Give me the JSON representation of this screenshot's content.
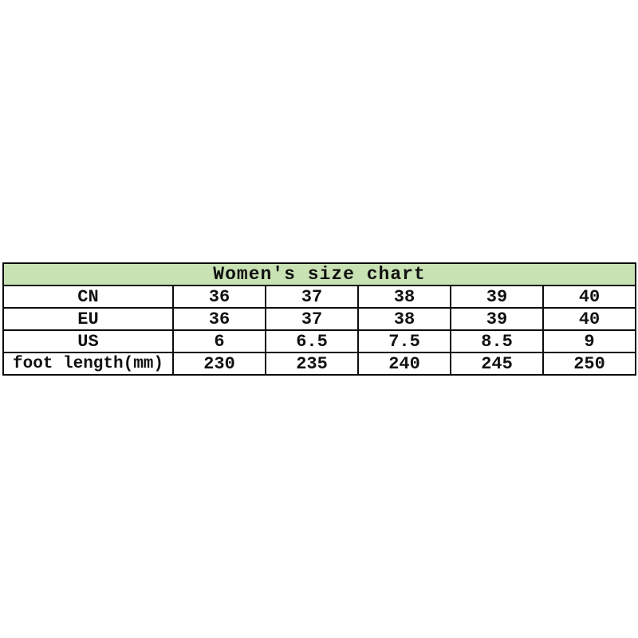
{
  "chart_data": {
    "type": "table",
    "title": "Women's size chart",
    "title_bg": "#c9e2b4",
    "border_color": "#0c0c0c",
    "text_color": "#111111",
    "background": "#ffffff",
    "columns_per_row": 5,
    "rows": [
      {
        "label": "CN",
        "values": [
          "36",
          "37",
          "38",
          "39",
          "40"
        ]
      },
      {
        "label": "EU",
        "values": [
          "36",
          "37",
          "38",
          "39",
          "40"
        ]
      },
      {
        "label": "US",
        "values": [
          "6",
          "6.5",
          "7.5",
          "8.5",
          "9"
        ]
      },
      {
        "label": "foot length(mm)",
        "values": [
          "230",
          "235",
          "240",
          "245",
          "250"
        ]
      }
    ]
  }
}
